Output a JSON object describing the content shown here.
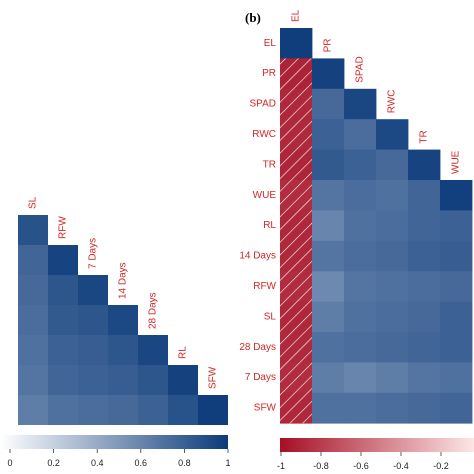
{
  "chart_data": [
    {
      "type": "heatmap",
      "panel_label": "",
      "variables": [
        "SL",
        "RFW",
        "7 Days",
        "14 Days",
        "28 Days",
        "RL",
        "SFW"
      ],
      "values": [
        [
          0.88,
          null,
          null,
          null,
          null,
          null,
          null
        ],
        [
          0.78,
          0.95,
          null,
          null,
          null,
          null,
          null
        ],
        [
          0.76,
          0.86,
          0.94,
          null,
          null,
          null,
          null
        ],
        [
          0.74,
          0.84,
          0.86,
          0.93,
          null,
          null,
          null
        ],
        [
          0.72,
          0.8,
          0.82,
          0.86,
          0.94,
          null,
          null
        ],
        [
          0.7,
          0.78,
          0.8,
          0.82,
          0.86,
          0.96,
          null
        ],
        [
          0.66,
          0.72,
          0.74,
          0.76,
          0.8,
          0.88,
          0.98
        ]
      ],
      "colorbar": {
        "ticks": [
          "0",
          "0.2",
          "0.4",
          "0.6",
          "0.8",
          "1"
        ],
        "range": [
          0,
          1
        ]
      },
      "colors": {
        "high": "#0b3a7a",
        "low": "#ffffff",
        "negative": "#a50f24"
      }
    },
    {
      "type": "heatmap",
      "panel_label": "(b)",
      "variables": [
        "EL",
        "PR",
        "SPAD",
        "RWC",
        "TR",
        "WUE",
        "RL",
        "14 Days",
        "RFW",
        "SL",
        "28 Days",
        "7 Days",
        "SFW"
      ],
      "column_labels": [
        "EL",
        "PR",
        "SPAD",
        "RWC",
        "TR",
        "WUE"
      ],
      "row_labels": [
        "EL",
        "PR",
        "SPAD",
        "RWC",
        "TR",
        "WUE",
        "RL",
        "14 Days",
        "RFW",
        "SL",
        "28 Days",
        "7 Days",
        "SFW"
      ],
      "values": [
        [
          0.98,
          null,
          null,
          null,
          null,
          null
        ],
        [
          -0.92,
          0.96,
          null,
          null,
          null,
          null
        ],
        [
          -0.9,
          0.76,
          0.94,
          null,
          null,
          null
        ],
        [
          -0.89,
          0.8,
          0.74,
          0.93,
          null,
          null
        ],
        [
          -0.91,
          0.84,
          0.8,
          0.76,
          0.95,
          null
        ],
        [
          -0.88,
          0.7,
          0.74,
          0.72,
          0.78,
          0.97
        ],
        [
          -0.9,
          0.62,
          0.72,
          0.74,
          0.78,
          0.8
        ],
        [
          -0.89,
          0.7,
          0.74,
          0.76,
          0.8,
          0.82
        ],
        [
          -0.88,
          0.6,
          0.7,
          0.72,
          0.74,
          0.76
        ],
        [
          -0.9,
          0.66,
          0.72,
          0.74,
          0.76,
          0.8
        ],
        [
          -0.89,
          0.72,
          0.74,
          0.76,
          0.78,
          0.8
        ],
        [
          -0.88,
          0.66,
          0.62,
          0.66,
          0.7,
          0.72
        ],
        [
          -0.9,
          0.72,
          0.72,
          0.74,
          0.76,
          0.78
        ]
      ],
      "hatched_column": "EL",
      "colorbar": {
        "ticks": [
          "-1",
          "-0.8",
          "-0.6",
          "-0.4",
          "-0.2"
        ],
        "range": [
          -1,
          0
        ]
      },
      "colors": {
        "high": "#0b3a7a",
        "low": "#ffffff",
        "negative": "#a50f24"
      }
    }
  ]
}
